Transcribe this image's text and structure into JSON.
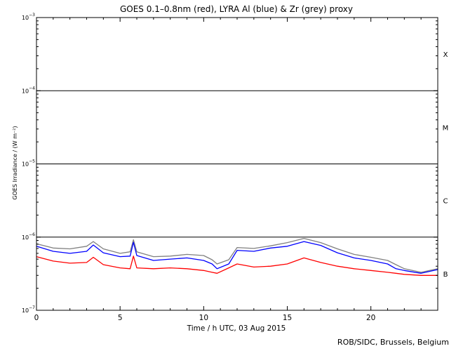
{
  "chart_data": {
    "type": "line",
    "title": "GOES 0.1–0.8nm (red), LYRA Al (blue) & Zr (grey) proxy",
    "xlabel": "Time / h UTC, 03 Aug 2015",
    "ylabel": "GOES Irradiance / (W m⁻²)",
    "xlim": [
      0,
      24
    ],
    "ylim": [
      1e-07,
      0.001
    ],
    "yscale": "log",
    "grid": false,
    "x_ticks": [
      0,
      5,
      10,
      15,
      20
    ],
    "x_tick_labels": [
      "0",
      "5",
      "10",
      "15",
      "20"
    ],
    "y_ticks": [
      {
        "value": 1e-07,
        "base": "10",
        "exp": "−7"
      },
      {
        "value": 1e-06,
        "base": "10",
        "exp": "−6"
      },
      {
        "value": 1e-05,
        "base": "10",
        "exp": "−5"
      },
      {
        "value": 0.0001,
        "base": "10",
        "exp": "−4"
      },
      {
        "value": 0.001,
        "base": "10",
        "exp": "−3"
      }
    ],
    "class_lines": [
      1e-06,
      1e-05,
      0.0001
    ],
    "flare_classes": [
      {
        "label": "X",
        "value": 0.000316
      },
      {
        "label": "M",
        "value": 3.16e-05
      },
      {
        "label": "C",
        "value": 3.16e-06
      },
      {
        "label": "B",
        "value": 3.16e-07
      }
    ],
    "x": [
      0,
      1,
      2,
      3,
      3.4,
      4,
      5,
      5.6,
      5.8,
      6,
      7,
      8,
      9,
      10,
      10.5,
      10.8,
      11.5,
      12,
      13,
      14,
      15,
      16,
      17,
      18,
      19,
      20,
      21,
      21.5,
      22,
      23,
      24
    ],
    "series": [
      {
        "name": "GOES 0.1–0.8nm",
        "color": "#ff0000",
        "values": [
          5.4e-07,
          4.7e-07,
          4.4e-07,
          4.5e-07,
          5.3e-07,
          4.2e-07,
          3.8e-07,
          3.7e-07,
          5.5e-07,
          3.8e-07,
          3.7e-07,
          3.8e-07,
          3.7e-07,
          3.5e-07,
          3.3e-07,
          3.2e-07,
          3.8e-07,
          4.3e-07,
          3.9e-07,
          4e-07,
          4.3e-07,
          5.2e-07,
          4.5e-07,
          4e-07,
          3.7e-07,
          3.5e-07,
          3.3e-07,
          3.2e-07,
          3.1e-07,
          3e-07,
          3e-07
        ]
      },
      {
        "name": "LYRA Al",
        "color": "#0000ff",
        "values": [
          7.5e-07,
          6.4e-07,
          6e-07,
          6.4e-07,
          7.8e-07,
          6.1e-07,
          5.4e-07,
          5.5e-07,
          8.5e-07,
          5.6e-07,
          4.8e-07,
          5e-07,
          5.2e-07,
          4.8e-07,
          4.3e-07,
          3.7e-07,
          4.3e-07,
          6.6e-07,
          6.4e-07,
          7.1e-07,
          7.5e-07,
          8.7e-07,
          7.7e-07,
          6.1e-07,
          5.2e-07,
          4.8e-07,
          4.3e-07,
          3.7e-07,
          3.5e-07,
          3.2e-07,
          3.6e-07
        ]
      },
      {
        "name": "Zr proxy",
        "color": "#808080",
        "values": [
          8.1e-07,
          7.1e-07,
          6.9e-07,
          7.5e-07,
          8.7e-07,
          6.9e-07,
          6e-07,
          6.3e-07,
          9.2e-07,
          6.3e-07,
          5.4e-07,
          5.5e-07,
          5.8e-07,
          5.6e-07,
          4.9e-07,
          4.3e-07,
          4.9e-07,
          7.2e-07,
          7e-07,
          7.6e-07,
          8.4e-07,
          9.6e-07,
          8.4e-07,
          6.9e-07,
          5.8e-07,
          5.3e-07,
          4.8e-07,
          4.2e-07,
          3.7e-07,
          3.3e-07,
          3.7e-07
        ]
      }
    ]
  },
  "footer": {
    "credit": "ROB/SIDC, Brussels, Belgium"
  }
}
